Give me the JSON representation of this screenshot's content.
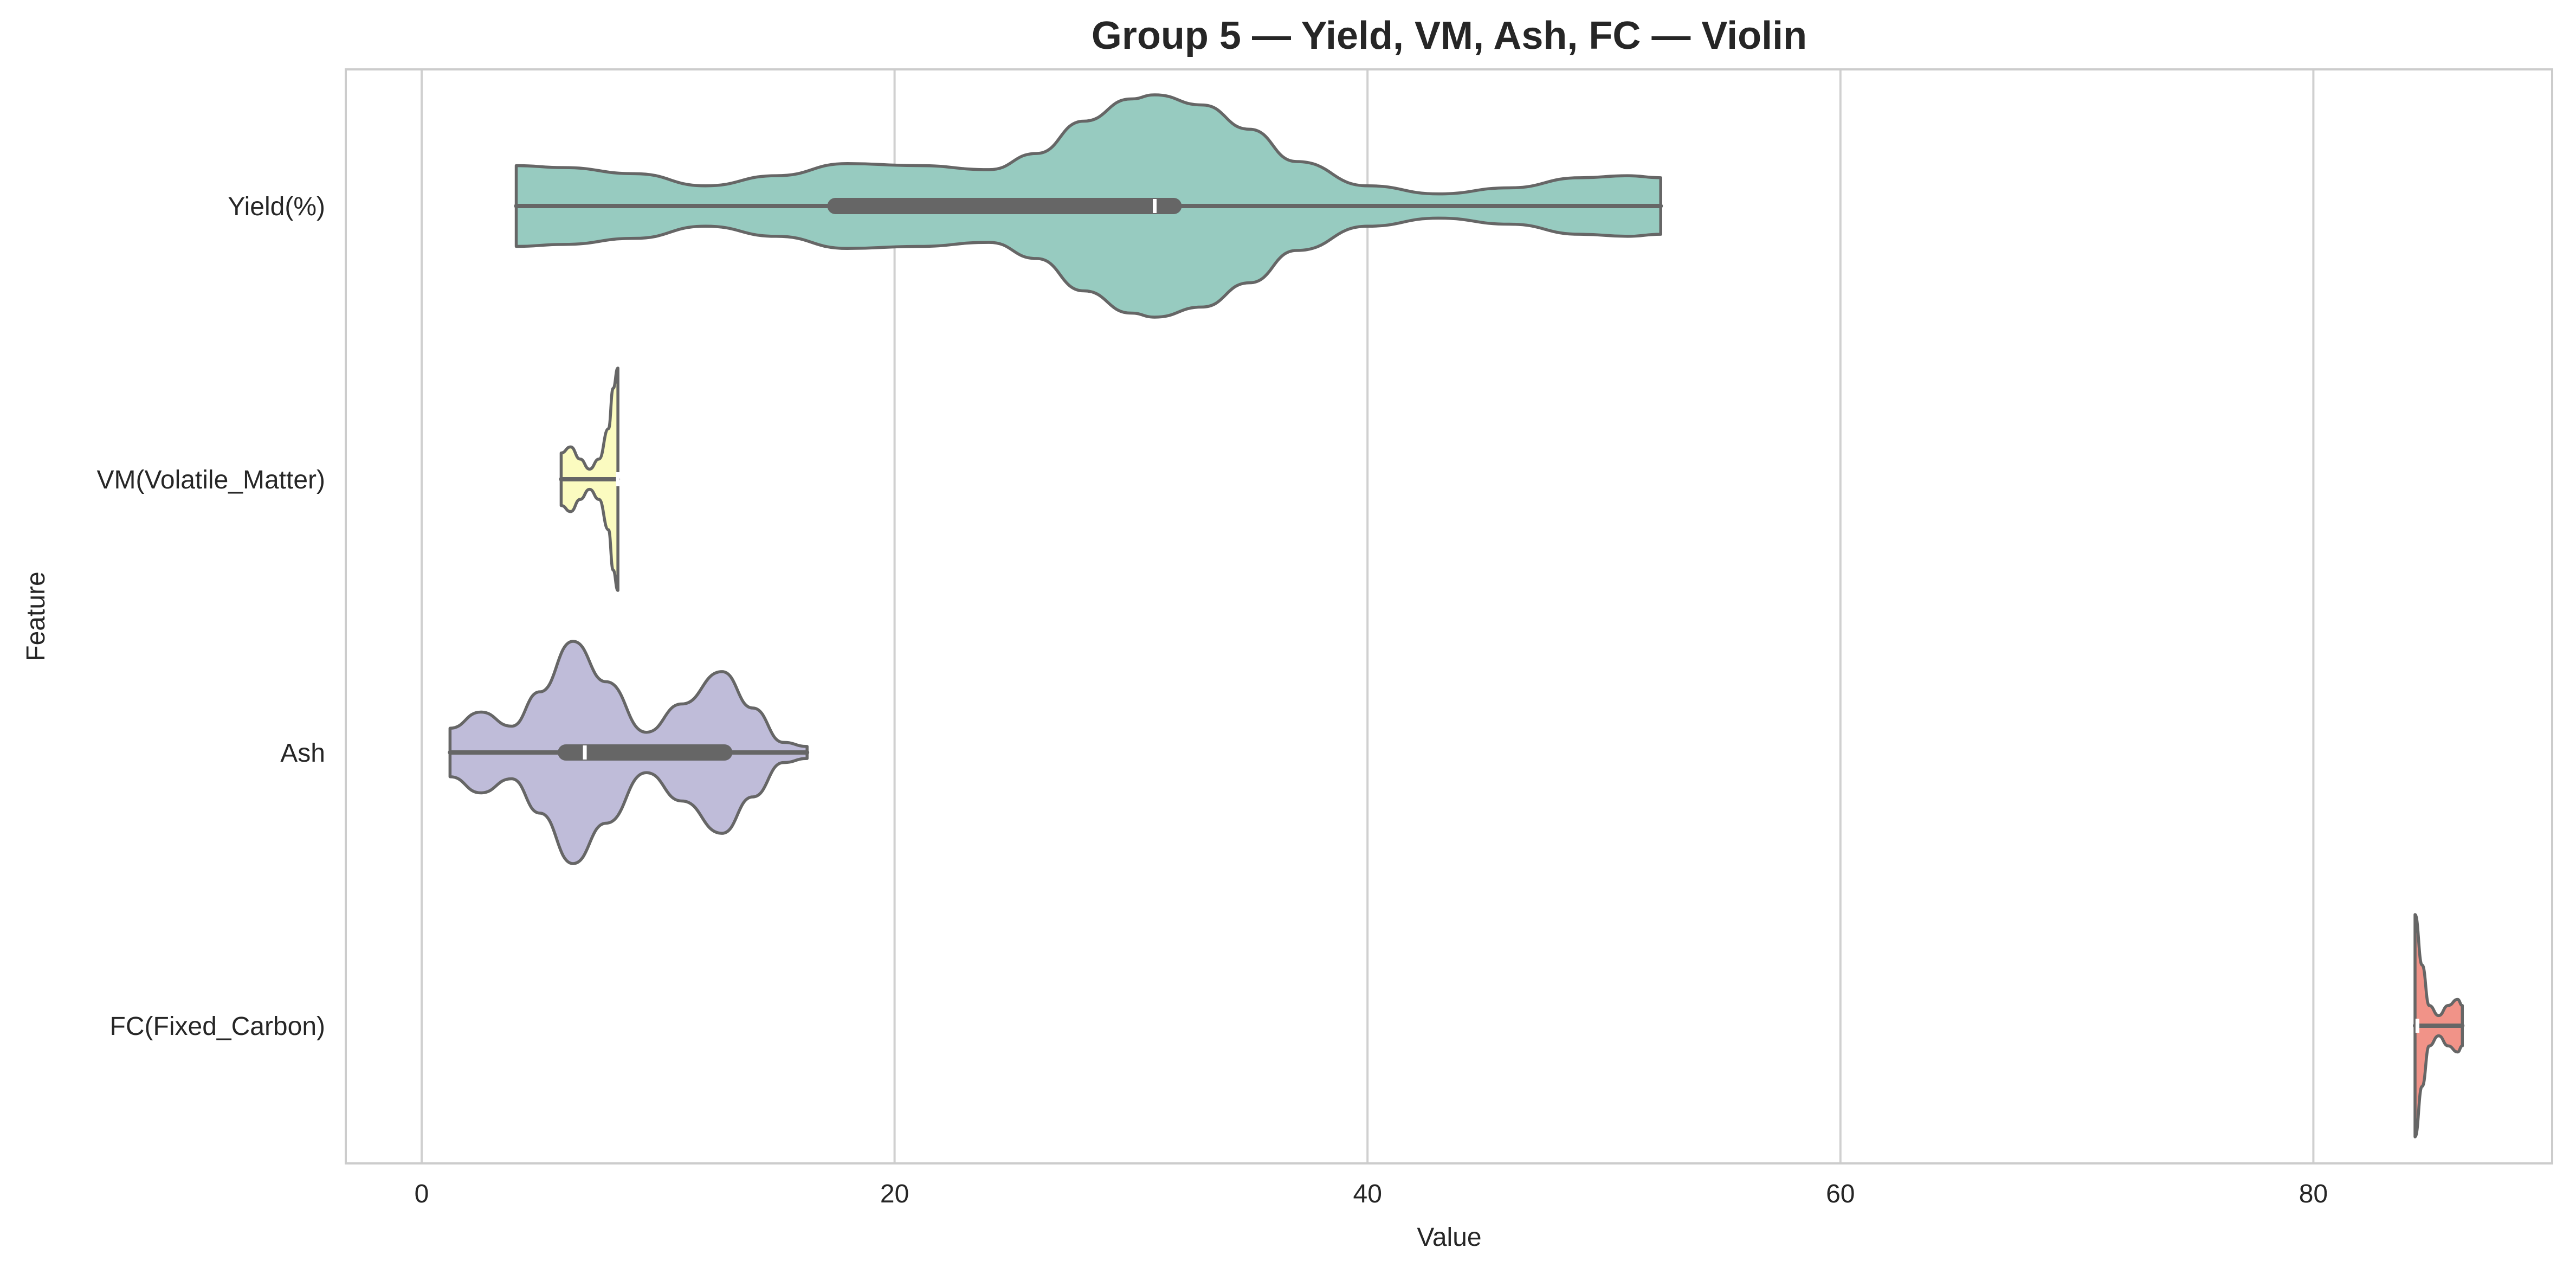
{
  "chart_data": {
    "type": "violin",
    "orientation": "horizontal",
    "title": "Group 5 — Yield, VM, Ash, FC — Violin",
    "xlabel": "Value",
    "ylabel": "Feature",
    "xlim": [
      -4,
      90
    ],
    "xticks": [
      0,
      20,
      40,
      60,
      80
    ],
    "grid": true,
    "series": [
      {
        "name": "Yield(%)",
        "color": "#97cbc0",
        "min": 4,
        "q1": 17.5,
        "median": 31,
        "q3": 31.8,
        "max": 52.4,
        "density": [
          [
            4,
            0.2
          ],
          [
            6,
            0.19
          ],
          [
            9,
            0.16
          ],
          [
            12,
            0.1
          ],
          [
            15,
            0.15
          ],
          [
            18,
            0.21
          ],
          [
            21,
            0.2
          ],
          [
            24,
            0.18
          ],
          [
            26,
            0.26
          ],
          [
            28,
            0.42
          ],
          [
            30,
            0.53
          ],
          [
            31,
            0.55
          ],
          [
            33,
            0.5
          ],
          [
            35,
            0.38
          ],
          [
            37,
            0.22
          ],
          [
            40,
            0.1
          ],
          [
            43,
            0.06
          ],
          [
            46,
            0.09
          ],
          [
            49,
            0.14
          ],
          [
            51,
            0.15
          ],
          [
            52.4,
            0.14
          ]
        ]
      },
      {
        "name": "VM(Volatile_Matter)",
        "color": "#fbfbc0",
        "min": 5.9,
        "q1": 8.2,
        "median": 8.3,
        "q3": 8.3,
        "max": 8.3,
        "density": [
          [
            5.9,
            0.13
          ],
          [
            6.3,
            0.16
          ],
          [
            6.7,
            0.1
          ],
          [
            7.1,
            0.05
          ],
          [
            7.5,
            0.1
          ],
          [
            7.9,
            0.25
          ],
          [
            8.1,
            0.45
          ],
          [
            8.3,
            0.55
          ]
        ]
      },
      {
        "name": "Ash",
        "color": "#bfbcd9",
        "min": 1.2,
        "q1": 6.1,
        "median": 6.9,
        "q3": 12.8,
        "max": 16.3,
        "density": [
          [
            1.2,
            0.12
          ],
          [
            2.5,
            0.2
          ],
          [
            3.8,
            0.13
          ],
          [
            5,
            0.3
          ],
          [
            6.4,
            0.55
          ],
          [
            7.8,
            0.35
          ],
          [
            9.5,
            0.1
          ],
          [
            11,
            0.24
          ],
          [
            12.7,
            0.4
          ],
          [
            14,
            0.22
          ],
          [
            15.3,
            0.05
          ],
          [
            16.3,
            0.03
          ]
        ]
      },
      {
        "name": "FC(Fixed_Carbon)",
        "color": "#f19388",
        "min": 84.3,
        "q1": 84.3,
        "median": 84.4,
        "q3": 84.5,
        "max": 86.3,
        "density": [
          [
            84.3,
            0.55
          ],
          [
            84.6,
            0.3
          ],
          [
            84.9,
            0.1
          ],
          [
            85.3,
            0.05
          ],
          [
            85.7,
            0.1
          ],
          [
            86.1,
            0.13
          ],
          [
            86.3,
            0.1
          ]
        ]
      }
    ]
  }
}
